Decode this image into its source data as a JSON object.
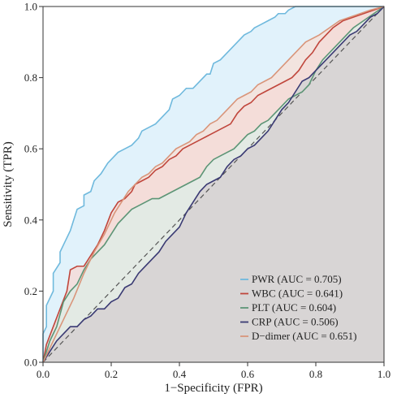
{
  "chart_data": {
    "type": "line",
    "xlabel": "1−Specificity (FPR)",
    "ylabel": "Sensitivity (TPR)",
    "xlim": [
      0,
      1
    ],
    "ylim": [
      0,
      1
    ],
    "xticks": [
      "0.0",
      "0.2",
      "0.4",
      "0.6",
      "0.8",
      "1.0"
    ],
    "yticks": [
      "0.0",
      "0.2",
      "0.4",
      "0.6",
      "0.8",
      "1.0"
    ],
    "legend_position": "bottom-right",
    "grid": false,
    "diagonal_reference": true,
    "series": [
      {
        "name": "PWR (AUC = 0.705)",
        "color": "#6fb9dd",
        "fill": "#dcf0fa",
        "x": [
          0,
          0,
          0.01,
          0.01,
          0.03,
          0.03,
          0.05,
          0.05,
          0.06,
          0.08,
          0.09,
          0.1,
          0.12,
          0.12,
          0.14,
          0.15,
          0.17,
          0.19,
          0.2,
          0.22,
          0.24,
          0.26,
          0.28,
          0.29,
          0.31,
          0.33,
          0.35,
          0.37,
          0.38,
          0.4,
          0.42,
          0.44,
          0.46,
          0.48,
          0.49,
          0.5,
          0.52,
          0.54,
          0.55,
          0.57,
          0.59,
          0.61,
          0.62,
          0.64,
          0.66,
          0.68,
          0.69,
          0.71,
          0.72,
          0.74,
          0.76,
          0.79,
          0.82,
          0.86,
          0.9,
          0.94,
          0.97,
          1
        ],
        "y": [
          0,
          0.08,
          0.1,
          0.16,
          0.2,
          0.25,
          0.28,
          0.31,
          0.33,
          0.37,
          0.4,
          0.43,
          0.44,
          0.47,
          0.48,
          0.51,
          0.53,
          0.56,
          0.57,
          0.59,
          0.6,
          0.61,
          0.63,
          0.65,
          0.66,
          0.67,
          0.69,
          0.71,
          0.74,
          0.75,
          0.77,
          0.77,
          0.79,
          0.81,
          0.81,
          0.84,
          0.85,
          0.87,
          0.88,
          0.9,
          0.92,
          0.93,
          0.94,
          0.95,
          0.96,
          0.97,
          0.98,
          0.98,
          0.99,
          1.0,
          1.0,
          1.0,
          1.0,
          1.0,
          1.0,
          1.0,
          1.0,
          1.0
        ]
      },
      {
        "name": "WBC (AUC = 0.641)",
        "color": "#c0463c",
        "fill": "#f5dcd8",
        "x": [
          0,
          0.01,
          0.03,
          0.05,
          0.07,
          0.08,
          0.1,
          0.12,
          0.14,
          0.16,
          0.18,
          0.2,
          0.22,
          0.24,
          0.26,
          0.27,
          0.29,
          0.31,
          0.33,
          0.35,
          0.37,
          0.39,
          0.41,
          0.43,
          0.45,
          0.47,
          0.49,
          0.51,
          0.53,
          0.55,
          0.57,
          0.59,
          0.61,
          0.63,
          0.65,
          0.67,
          0.69,
          0.71,
          0.73,
          0.75,
          0.77,
          0.79,
          0.81,
          0.83,
          0.85,
          0.88,
          0.91,
          0.94,
          0.97,
          1
        ],
        "y": [
          0,
          0.05,
          0.1,
          0.15,
          0.2,
          0.26,
          0.27,
          0.27,
          0.3,
          0.33,
          0.37,
          0.42,
          0.45,
          0.46,
          0.48,
          0.5,
          0.51,
          0.52,
          0.54,
          0.55,
          0.57,
          0.58,
          0.6,
          0.61,
          0.62,
          0.63,
          0.64,
          0.65,
          0.66,
          0.67,
          0.7,
          0.72,
          0.73,
          0.75,
          0.76,
          0.77,
          0.78,
          0.79,
          0.8,
          0.82,
          0.85,
          0.87,
          0.9,
          0.92,
          0.94,
          0.96,
          0.97,
          0.98,
          0.99,
          1.0
        ]
      },
      {
        "name": "PLT (AUC = 0.604)",
        "color": "#5d9576",
        "fill": "#dfece5",
        "x": [
          0,
          0.02,
          0.04,
          0.06,
          0.08,
          0.1,
          0.12,
          0.14,
          0.16,
          0.18,
          0.2,
          0.22,
          0.24,
          0.26,
          0.28,
          0.3,
          0.32,
          0.34,
          0.36,
          0.38,
          0.4,
          0.42,
          0.44,
          0.46,
          0.48,
          0.5,
          0.52,
          0.54,
          0.56,
          0.58,
          0.6,
          0.62,
          0.64,
          0.66,
          0.68,
          0.7,
          0.72,
          0.74,
          0.76,
          0.78,
          0.8,
          0.82,
          0.85,
          0.88,
          0.91,
          0.94,
          0.97,
          1
        ],
        "y": [
          0,
          0.06,
          0.1,
          0.17,
          0.2,
          0.22,
          0.26,
          0.29,
          0.31,
          0.33,
          0.36,
          0.39,
          0.41,
          0.43,
          0.44,
          0.45,
          0.46,
          0.46,
          0.47,
          0.48,
          0.49,
          0.5,
          0.51,
          0.52,
          0.55,
          0.57,
          0.58,
          0.59,
          0.6,
          0.62,
          0.64,
          0.65,
          0.67,
          0.68,
          0.7,
          0.72,
          0.74,
          0.75,
          0.76,
          0.78,
          0.82,
          0.85,
          0.88,
          0.91,
          0.94,
          0.96,
          0.98,
          1.0
        ]
      },
      {
        "name": "CRP (AUC = 0.506)",
        "color": "#3a3a73",
        "fill": "#d8d5d5",
        "x": [
          0,
          0.02,
          0.04,
          0.06,
          0.08,
          0.1,
          0.12,
          0.14,
          0.16,
          0.18,
          0.2,
          0.22,
          0.24,
          0.26,
          0.28,
          0.3,
          0.32,
          0.34,
          0.36,
          0.38,
          0.4,
          0.42,
          0.44,
          0.46,
          0.48,
          0.5,
          0.52,
          0.54,
          0.56,
          0.58,
          0.6,
          0.62,
          0.64,
          0.66,
          0.68,
          0.7,
          0.72,
          0.74,
          0.76,
          0.78,
          0.8,
          0.82,
          0.84,
          0.86,
          0.88,
          0.9,
          0.92,
          0.94,
          0.96,
          0.98,
          1
        ],
        "y": [
          0,
          0.03,
          0.06,
          0.08,
          0.1,
          0.1,
          0.12,
          0.13,
          0.15,
          0.15,
          0.17,
          0.18,
          0.21,
          0.22,
          0.25,
          0.27,
          0.29,
          0.31,
          0.34,
          0.36,
          0.38,
          0.42,
          0.45,
          0.48,
          0.5,
          0.51,
          0.52,
          0.55,
          0.57,
          0.58,
          0.6,
          0.61,
          0.63,
          0.65,
          0.68,
          0.71,
          0.73,
          0.76,
          0.79,
          0.8,
          0.82,
          0.84,
          0.86,
          0.88,
          0.9,
          0.92,
          0.93,
          0.95,
          0.97,
          0.98,
          1.0
        ]
      },
      {
        "name": "D−dimer (AUC = 0.651)",
        "color": "#d9957a",
        "fill": "#f5e2d9",
        "x": [
          0,
          0.03,
          0.06,
          0.09,
          0.12,
          0.15,
          0.18,
          0.21,
          0.23,
          0.25,
          0.27,
          0.29,
          0.31,
          0.33,
          0.35,
          0.37,
          0.39,
          0.41,
          0.43,
          0.45,
          0.47,
          0.49,
          0.51,
          0.53,
          0.55,
          0.57,
          0.59,
          0.61,
          0.63,
          0.65,
          0.67,
          0.69,
          0.71,
          0.73,
          0.75,
          0.77,
          0.79,
          0.81,
          0.84,
          0.87,
          0.9,
          0.93,
          0.96,
          1
        ],
        "y": [
          0,
          0.06,
          0.12,
          0.18,
          0.25,
          0.31,
          0.36,
          0.42,
          0.45,
          0.48,
          0.5,
          0.52,
          0.53,
          0.55,
          0.56,
          0.58,
          0.6,
          0.61,
          0.62,
          0.64,
          0.65,
          0.67,
          0.68,
          0.7,
          0.72,
          0.74,
          0.75,
          0.76,
          0.78,
          0.79,
          0.8,
          0.82,
          0.84,
          0.86,
          0.88,
          0.9,
          0.91,
          0.92,
          0.94,
          0.96,
          0.97,
          0.98,
          0.99,
          1.0
        ]
      }
    ]
  }
}
